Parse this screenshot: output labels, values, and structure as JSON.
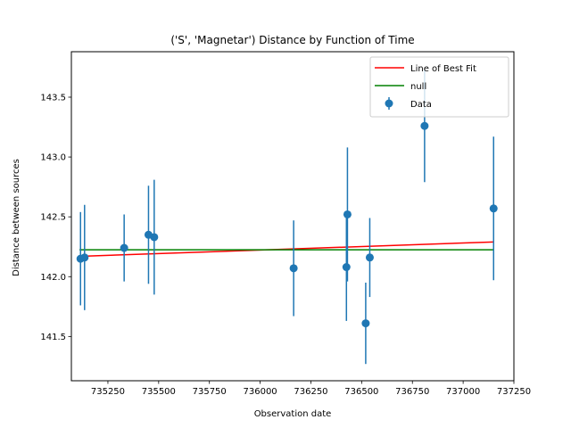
{
  "chart_data": {
    "type": "scatter",
    "title": "('S', 'Magnetar') Distance by Function of Time",
    "xlabel": "Observation date",
    "ylabel": "Distance between sources",
    "xlim": [
      735070,
      737250
    ],
    "ylim": [
      141.13,
      143.88
    ],
    "xticks": [
      735250,
      735500,
      735750,
      736000,
      736250,
      736500,
      736750,
      737000,
      737250
    ],
    "yticks": [
      141.5,
      142.0,
      142.5,
      143.0,
      143.5
    ],
    "grid": false,
    "legend_position": "upper right",
    "series": [
      {
        "name": "Data",
        "kind": "errorbar",
        "color": "#1f77b4",
        "points": [
          {
            "x": 735115,
            "y": 142.15,
            "err": 0.39
          },
          {
            "x": 735135,
            "y": 142.16,
            "err": 0.44
          },
          {
            "x": 735330,
            "y": 142.24,
            "err": 0.28
          },
          {
            "x": 735450,
            "y": 142.35,
            "err": 0.41
          },
          {
            "x": 735478,
            "y": 142.33,
            "err": 0.48
          },
          {
            "x": 736165,
            "y": 142.07,
            "err": 0.4
          },
          {
            "x": 736425,
            "y": 142.08,
            "err": 0.45
          },
          {
            "x": 736430,
            "y": 142.52,
            "err": 0.56
          },
          {
            "x": 736520,
            "y": 141.61,
            "err": 0.34
          },
          {
            "x": 736540,
            "y": 142.16,
            "err": 0.33
          },
          {
            "x": 736810,
            "y": 143.26,
            "err": 0.47
          },
          {
            "x": 737150,
            "y": 142.57,
            "err": 0.6
          }
        ]
      },
      {
        "name": "Line of Best Fit",
        "kind": "line",
        "color": "#ff0000",
        "x": [
          735110,
          737150
        ],
        "y": [
          142.17,
          142.29
        ]
      },
      {
        "name": "null",
        "kind": "line",
        "color": "#008000",
        "x": [
          735110,
          737150
        ],
        "y": [
          142.225,
          142.225
        ]
      }
    ],
    "legend": [
      "Line of Best Fit",
      "null",
      "Data"
    ]
  }
}
